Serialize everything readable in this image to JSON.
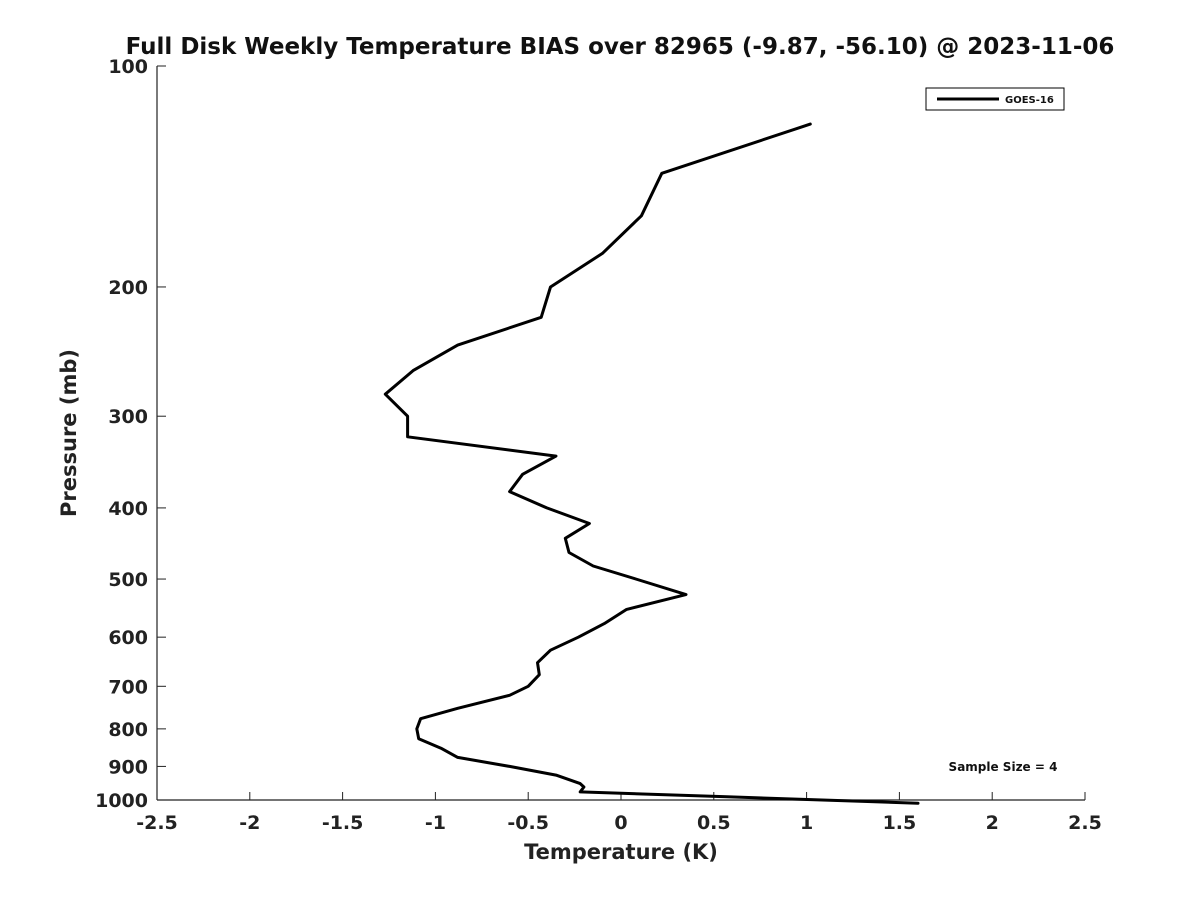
{
  "chart_data": {
    "type": "line",
    "title": "Full Disk Weekly Temperature BIAS over 82965 (-9.87, -56.10) @ 2023-11-06",
    "xlabel": "Temperature (K)",
    "ylabel": "Pressure (mb)",
    "xlim": [
      -2.5,
      2.5
    ],
    "ylim": [
      100,
      1000
    ],
    "y_scale": "log",
    "y_reversed": true,
    "grid": false,
    "legend_position": "top-right",
    "x_ticks": [
      "-2.5",
      "-2",
      "-1.5",
      "-1",
      "-0.5",
      "0",
      "0.5",
      "1",
      "1.5",
      "2",
      "2.5"
    ],
    "x_tick_values": [
      -2.5,
      -2,
      -1.5,
      -1,
      -0.5,
      0,
      0.5,
      1,
      1.5,
      2,
      2.5
    ],
    "y_ticks": [
      "100",
      "200",
      "300",
      "400",
      "500",
      "600",
      "700",
      "800",
      "900",
      "1000"
    ],
    "y_tick_values": [
      100,
      200,
      300,
      400,
      500,
      600,
      700,
      800,
      900,
      1000
    ],
    "series": [
      {
        "name": "GOES-16",
        "color": "#000000",
        "points": [
          [
            1.02,
            120
          ],
          [
            0.22,
            140
          ],
          [
            0.11,
            160
          ],
          [
            -0.1,
            180
          ],
          [
            -0.38,
            200
          ],
          [
            -0.43,
            220
          ],
          [
            -0.88,
            240
          ],
          [
            -1.12,
            260
          ],
          [
            -1.27,
            280
          ],
          [
            -1.15,
            300
          ],
          [
            -1.15,
            320
          ],
          [
            -0.35,
            340
          ],
          [
            -0.53,
            360
          ],
          [
            -0.6,
            380
          ],
          [
            -0.4,
            400
          ],
          [
            -0.17,
            420
          ],
          [
            -0.3,
            440
          ],
          [
            -0.28,
            460
          ],
          [
            -0.15,
            480
          ],
          [
            0.08,
            500
          ],
          [
            0.35,
            525
          ],
          [
            0.03,
            550
          ],
          [
            -0.09,
            575
          ],
          [
            -0.23,
            600
          ],
          [
            -0.38,
            625
          ],
          [
            -0.45,
            650
          ],
          [
            -0.44,
            675
          ],
          [
            -0.5,
            700
          ],
          [
            -0.6,
            720
          ],
          [
            -0.88,
            750
          ],
          [
            -1.08,
            775
          ],
          [
            -1.1,
            800
          ],
          [
            -1.09,
            825
          ],
          [
            -0.97,
            850
          ],
          [
            -0.88,
            875
          ],
          [
            -0.6,
            900
          ],
          [
            -0.35,
            925
          ],
          [
            -0.22,
            950
          ],
          [
            -0.2,
            960
          ],
          [
            -0.22,
            975
          ],
          [
            0.57,
            990
          ],
          [
            1.6,
            1010
          ]
        ]
      }
    ],
    "legend": [
      {
        "label": "GOES-16",
        "color": "#000000"
      }
    ],
    "annotation": "Sample Size = 4"
  }
}
